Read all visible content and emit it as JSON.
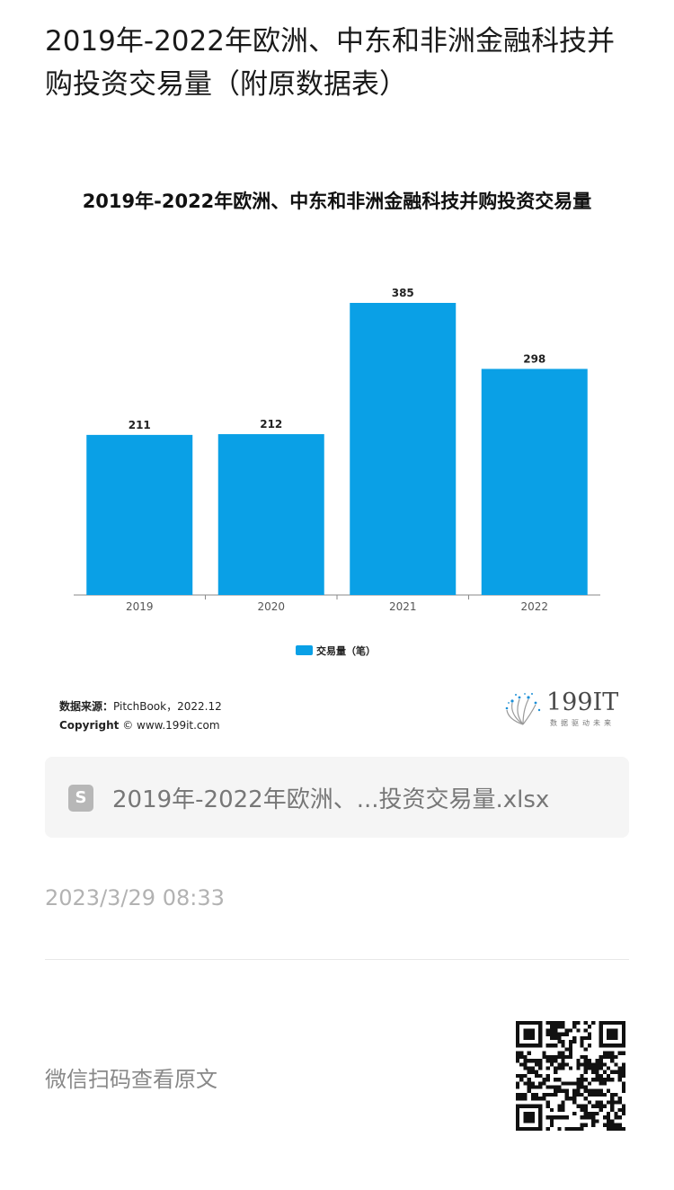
{
  "article": {
    "title": "2019年-2022年欧洲、中东和非洲金融科技并购投资交易量（附原数据表）"
  },
  "chart_data": {
    "type": "bar",
    "title": "2019年-2022年欧洲、中东和非洲金融科技并购投资交易量",
    "categories": [
      "2019",
      "2020",
      "2021",
      "2022"
    ],
    "series": [
      {
        "name": "交易量（笔）",
        "values": [
          211,
          212,
          385,
          298
        ]
      }
    ],
    "ylim": [
      0,
      385
    ],
    "grid": false,
    "legend_position": "bottom",
    "bar_color": "#0aa0e6"
  },
  "source": {
    "label": "数据来源：",
    "text": "PitchBook，2022.12",
    "copyright_label": "Copyright",
    "copyright_text": "© www.199it.com"
  },
  "brand": {
    "name": "199IT",
    "slogan": "数据驱动未来"
  },
  "file": {
    "icon": "spreadsheet-icon",
    "icon_glyph": "S",
    "name": "2019年-2022年欧洲、...投资交易量.xlsx"
  },
  "timestamp": "2023/3/29 08:33",
  "footer": {
    "hint": "微信扫码查看原文",
    "qr_icon": "qr-code-icon"
  }
}
